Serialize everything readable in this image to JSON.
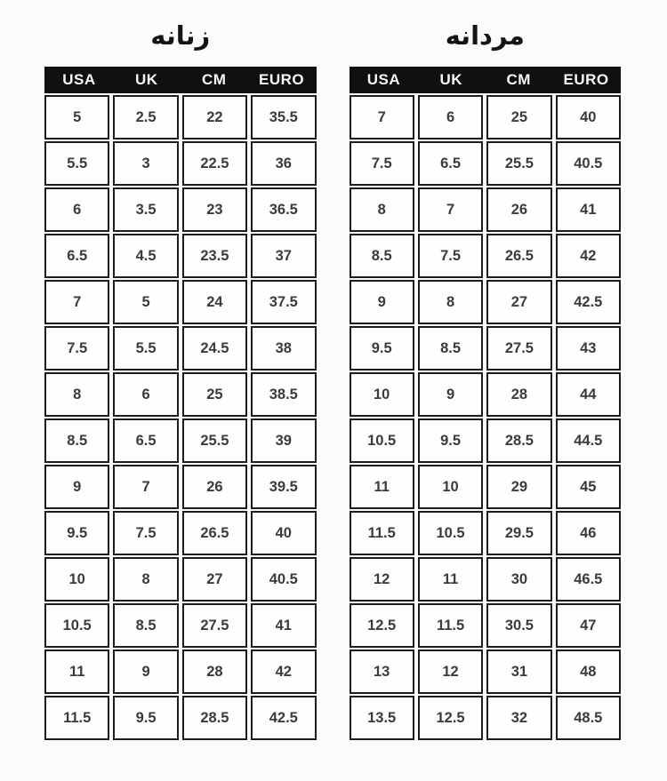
{
  "page": {
    "background_color": "#fbfbfd",
    "header_background": "#101010",
    "header_text_color": "#f7f7f7",
    "cell_border_color": "#1c1c1c",
    "cell_background": "#fefefe",
    "body_text_color": "#3b3b3b",
    "title_text_color": "#141414"
  },
  "chart_data": [
    {
      "type": "table",
      "title": "زنانه",
      "columns": [
        "USA",
        "UK",
        "CM",
        "EURO"
      ],
      "rows": [
        [
          "5",
          "2.5",
          "22",
          "35.5"
        ],
        [
          "5.5",
          "3",
          "22.5",
          "36"
        ],
        [
          "6",
          "3.5",
          "23",
          "36.5"
        ],
        [
          "6.5",
          "4.5",
          "23.5",
          "37"
        ],
        [
          "7",
          "5",
          "24",
          "37.5"
        ],
        [
          "7.5",
          "5.5",
          "24.5",
          "38"
        ],
        [
          "8",
          "6",
          "25",
          "38.5"
        ],
        [
          "8.5",
          "6.5",
          "25.5",
          "39"
        ],
        [
          "9",
          "7",
          "26",
          "39.5"
        ],
        [
          "9.5",
          "7.5",
          "26.5",
          "40"
        ],
        [
          "10",
          "8",
          "27",
          "40.5"
        ],
        [
          "10.5",
          "8.5",
          "27.5",
          "41"
        ],
        [
          "11",
          "9",
          "28",
          "42"
        ],
        [
          "11.5",
          "9.5",
          "28.5",
          "42.5"
        ]
      ]
    },
    {
      "type": "table",
      "title": "مردانه",
      "columns": [
        "USA",
        "UK",
        "CM",
        "EURO"
      ],
      "rows": [
        [
          "7",
          "6",
          "25",
          "40"
        ],
        [
          "7.5",
          "6.5",
          "25.5",
          "40.5"
        ],
        [
          "8",
          "7",
          "26",
          "41"
        ],
        [
          "8.5",
          "7.5",
          "26.5",
          "42"
        ],
        [
          "9",
          "8",
          "27",
          "42.5"
        ],
        [
          "9.5",
          "8.5",
          "27.5",
          "43"
        ],
        [
          "10",
          "9",
          "28",
          "44"
        ],
        [
          "10.5",
          "9.5",
          "28.5",
          "44.5"
        ],
        [
          "11",
          "10",
          "29",
          "45"
        ],
        [
          "11.5",
          "10.5",
          "29.5",
          "46"
        ],
        [
          "12",
          "11",
          "30",
          "46.5"
        ],
        [
          "12.5",
          "11.5",
          "30.5",
          "47"
        ],
        [
          "13",
          "12",
          "31",
          "48"
        ],
        [
          "13.5",
          "12.5",
          "32",
          "48.5"
        ]
      ]
    }
  ]
}
